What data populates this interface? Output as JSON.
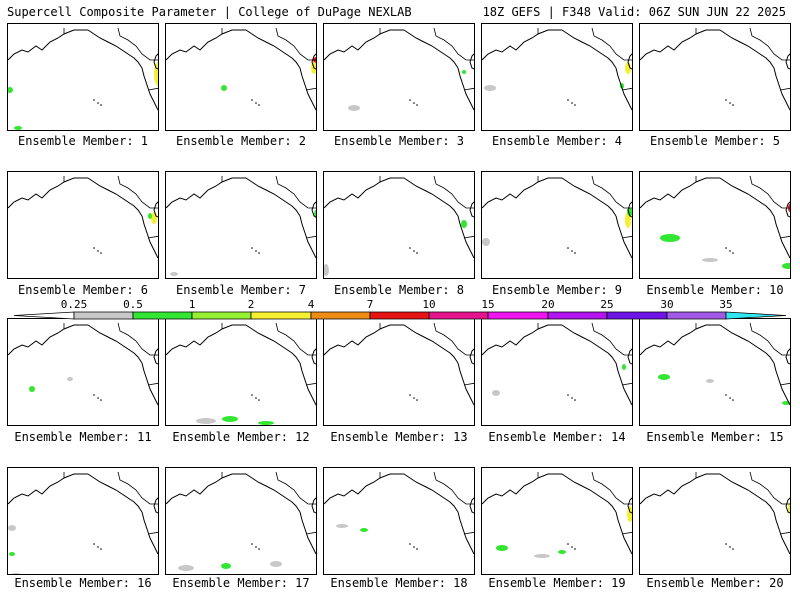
{
  "header": {
    "title": "Supercell Composite Parameter | College of DuPage NEXLAB",
    "run_info": "18Z GEFS | F348 Valid: 06Z SUN JUN 22 2025"
  },
  "members": [
    "Ensemble Member: 1",
    "Ensemble Member: 2",
    "Ensemble Member: 3",
    "Ensemble Member: 4",
    "Ensemble Member: 5",
    "Ensemble Member: 6",
    "Ensemble Member: 7",
    "Ensemble Member: 8",
    "Ensemble Member: 9",
    "Ensemble Member: 10",
    "Ensemble Member: 11",
    "Ensemble Member: 12",
    "Ensemble Member: 13",
    "Ensemble Member: 14",
    "Ensemble Member: 15",
    "Ensemble Member: 16",
    "Ensemble Member: 17",
    "Ensemble Member: 18",
    "Ensemble Member: 19",
    "Ensemble Member: 20"
  ],
  "colorbar": {
    "ticks": [
      "0.25",
      "0.5",
      "1",
      "2",
      "4",
      "7",
      "10",
      "15",
      "20",
      "25",
      "30",
      "35"
    ],
    "colors": [
      "#ffffff",
      "#c8c8c8",
      "#32e632",
      "#96f032",
      "#f5f032",
      "#f08c14",
      "#e61414",
      "#e6148c",
      "#f014f0",
      "#b414f0",
      "#6e14e6",
      "#a05ae6",
      "#32e6f0"
    ]
  },
  "colors": {
    "land_outline": "#000000",
    "light": "#c8c8c8",
    "green": "#32e632",
    "lime": "#96f032",
    "yellow": "#f5f032",
    "red": "#e61414"
  }
}
